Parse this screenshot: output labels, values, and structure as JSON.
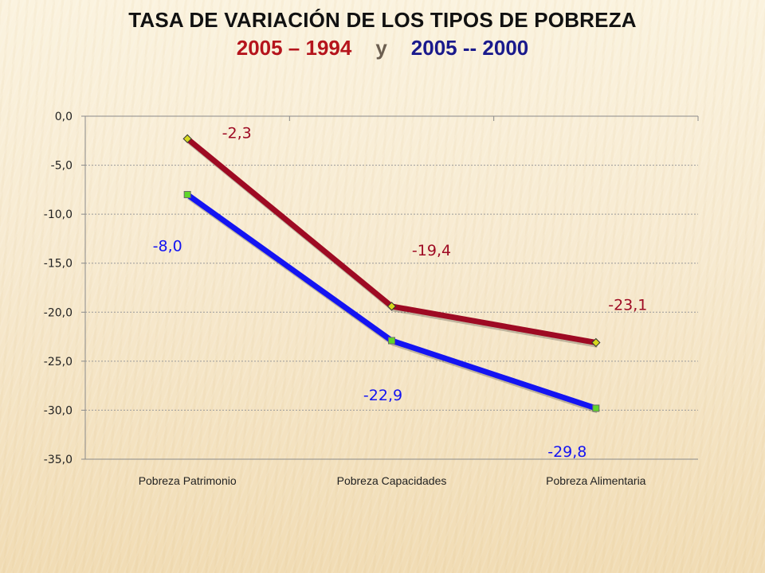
{
  "title": {
    "line1": "TASA DE VARIACIÓN DE LOS TIPOS DE POBREZA",
    "period_a": "2005 – 1994",
    "separator": "y",
    "period_b": "2005 -- 2000"
  },
  "chart_data": {
    "type": "line",
    "title": "TASA DE VARIACIÓN DE LOS TIPOS DE POBREZA",
    "categories": [
      "Pobreza Patrimonio",
      "Pobreza Capacidades",
      "Pobreza Alimentaria"
    ],
    "series": [
      {
        "name": "2005 – 1994",
        "values": [
          -2.3,
          -19.4,
          -23.1
        ],
        "labels": [
          "-2,3",
          "-19,4",
          "-23,1"
        ],
        "color": "#9e0a23",
        "marker_color": "#d6d81e"
      },
      {
        "name": "2005 -- 2000",
        "values": [
          -8.0,
          -22.9,
          -29.8
        ],
        "labels": [
          "-8,0",
          "-22,9",
          "-29,8"
        ],
        "color": "#1414f2",
        "marker_color": "#5fd62a"
      }
    ],
    "ylim": [
      -35,
      0
    ],
    "yticks": [
      0,
      -5,
      -10,
      -15,
      -20,
      -25,
      -30,
      -35
    ],
    "ytick_labels": [
      "0,0",
      "-5,0",
      "-10,0",
      "-15,0",
      "-20,0",
      "-25,0",
      "-30,0",
      "-35,0"
    ],
    "grid": true,
    "legend": "none"
  }
}
